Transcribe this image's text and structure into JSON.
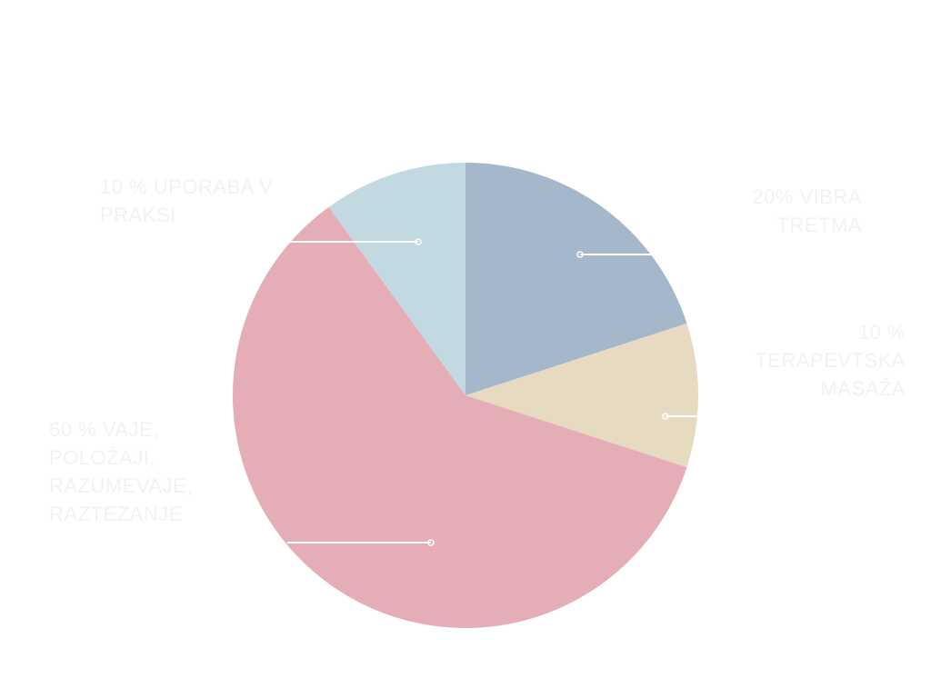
{
  "chart_data": {
    "type": "pie",
    "start_angle": "top",
    "direction": "clockwise",
    "slices": [
      {
        "label": "20% VIBRA\nTRETMA",
        "value": 20,
        "color": "#a4b7cb"
      },
      {
        "label": "10 %\nTERAPEVTSKA\nMASAŽA",
        "value": 10,
        "color": "#e6dac1"
      },
      {
        "label": "60 % VAJE,\nPOLOŽAJI,\nRAZUMEVAJE,\nRAZTEZANJE",
        "value": 60,
        "color": "#e5adb6"
      },
      {
        "label": "10 % UPORABA V\nPRAKSI",
        "value": 10,
        "color": "#c2d9e1"
      }
    ],
    "leader_line_color": "#ffffff"
  }
}
